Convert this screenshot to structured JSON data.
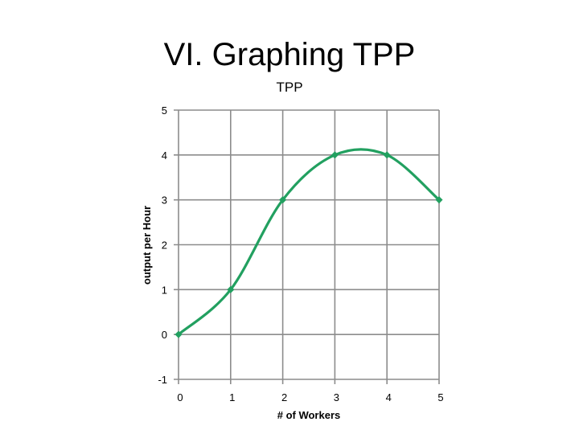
{
  "slide": {
    "title": "VI. Graphing TPP"
  },
  "chart_data": {
    "type": "line",
    "title": "TPP",
    "xlabel": "# of Workers",
    "ylabel": "output per Hour",
    "x": [
      0,
      1,
      2,
      3,
      4,
      5
    ],
    "series": [
      {
        "values": [
          0,
          1,
          3,
          4,
          4,
          3
        ]
      }
    ],
    "xlim": [
      0,
      5
    ],
    "ylim": [
      -1,
      5
    ],
    "xticks": [
      "0",
      "1",
      "2",
      "3",
      "4",
      "5"
    ],
    "yticks": [
      "-1",
      "0",
      "1",
      "2",
      "3",
      "4",
      "5"
    ],
    "grid": true,
    "smoothed": true,
    "color": "#22a060",
    "gridColor": "#8c8c8c"
  }
}
